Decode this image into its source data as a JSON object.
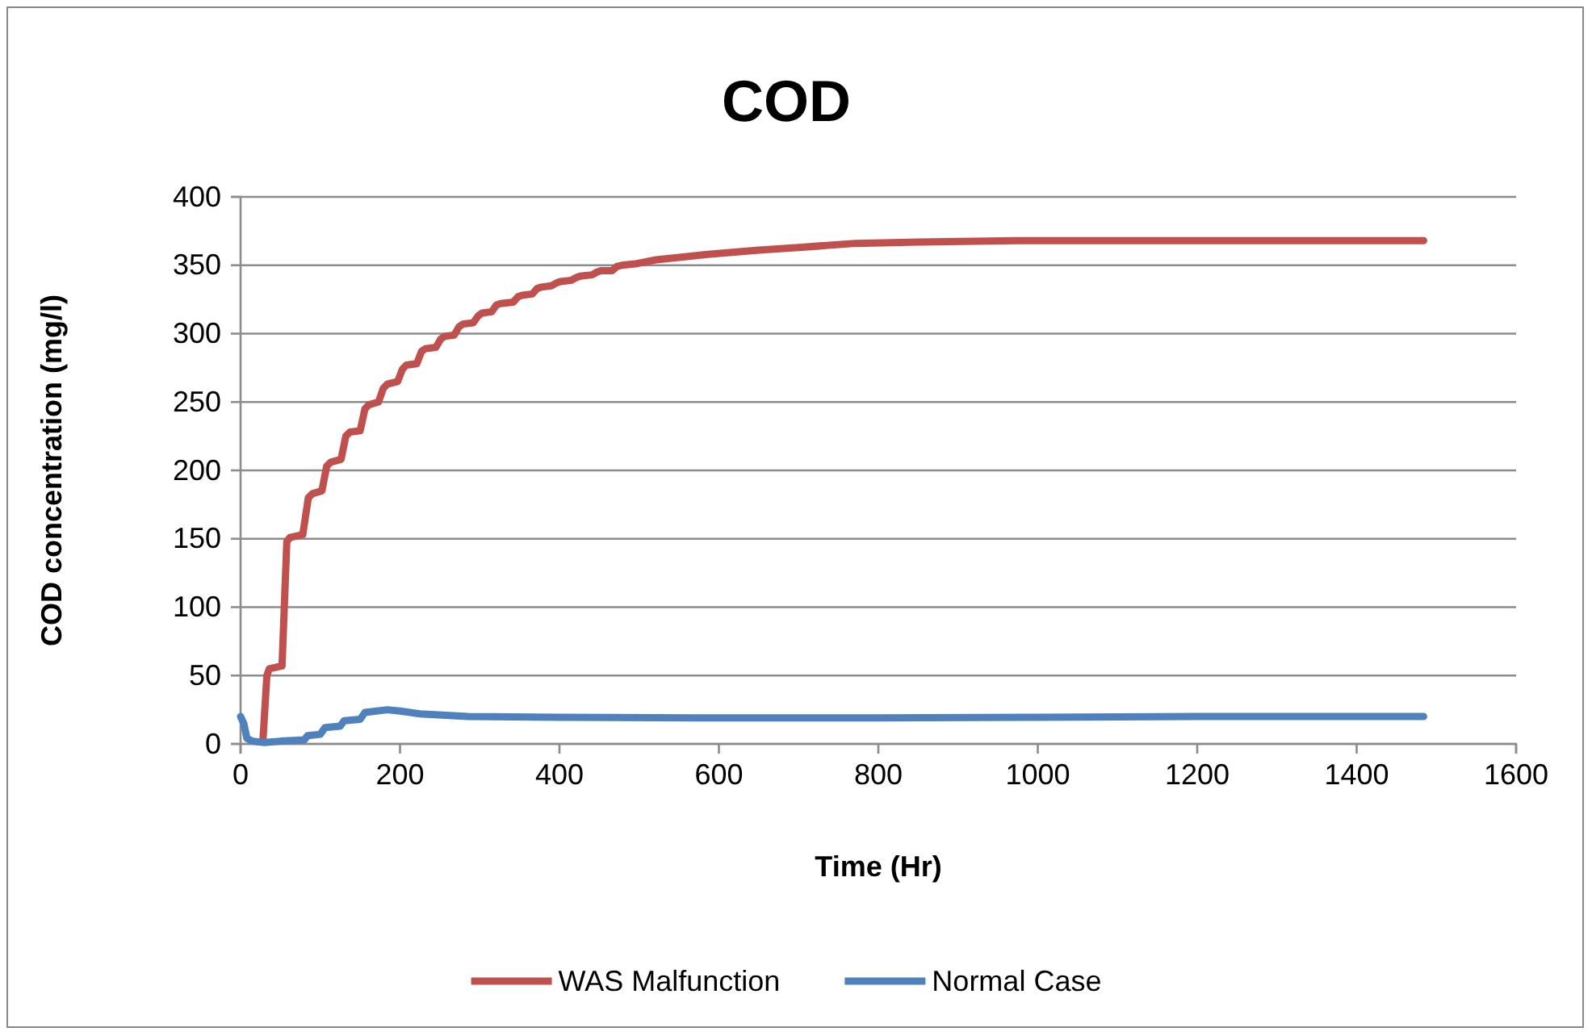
{
  "chart_data": {
    "type": "line",
    "title": "COD",
    "xlabel": "Time (Hr)",
    "ylabel": "COD concentration (mg/l)",
    "xlim": [
      0,
      1600
    ],
    "xticks": [
      0,
      200,
      400,
      600,
      800,
      1000,
      1200,
      1400,
      1600
    ],
    "ylim": [
      0,
      400
    ],
    "yticks": [
      0,
      50,
      100,
      150,
      200,
      250,
      300,
      350,
      400
    ],
    "grid": "y",
    "legend": "bottom",
    "marker": "none",
    "line_style": "solid",
    "series": [
      {
        "name": "WAS Malfunction",
        "color": "#c0504d",
        "x": [
          28,
          33,
          36,
          52,
          58,
          62,
          78,
          85,
          90,
          102,
          108,
          113,
          126,
          132,
          137,
          150,
          156,
          161,
          173,
          179,
          184,
          197,
          203,
          208,
          221,
          227,
          232,
          245,
          251,
          256,
          268,
          274,
          279,
          292,
          298,
          303,
          315,
          321,
          326,
          342,
          348,
          353,
          366,
          372,
          377,
          390,
          396,
          401,
          415,
          421,
          426,
          441,
          447,
          452,
          466,
          472,
          478,
          495,
          521,
          555,
          586,
          650,
          700,
          771,
          850,
          974,
          1100,
          1200,
          1300,
          1400,
          1484
        ],
        "values": [
          2,
          50,
          55,
          57,
          148,
          151,
          153,
          180,
          183,
          185,
          203,
          206,
          208,
          225,
          228,
          229,
          245,
          248,
          250,
          260,
          263,
          265,
          274,
          277,
          278,
          287,
          289,
          290,
          296,
          298,
          299,
          305,
          307,
          308,
          313,
          315,
          316,
          321,
          322,
          323,
          327,
          328,
          329,
          333,
          334,
          335,
          337,
          338,
          339,
          341,
          342,
          343,
          345,
          346,
          346,
          349,
          350,
          351,
          354,
          356,
          358,
          361,
          363,
          366,
          367,
          368,
          368,
          368,
          368,
          368,
          368
        ]
      },
      {
        "name": "Normal Case",
        "color": "#4f81bd",
        "x": [
          0,
          4,
          8,
          15,
          30,
          50,
          80,
          84,
          100,
          106,
          125,
          130,
          150,
          156,
          184,
          200,
          225,
          285,
          400,
          569,
          800,
          1000,
          1200,
          1484
        ],
        "values": [
          20,
          15,
          4,
          2,
          1,
          2,
          3,
          6,
          7,
          12,
          13,
          17,
          18,
          23,
          25,
          24,
          22,
          20,
          19.5,
          19,
          19,
          19.5,
          20,
          20
        ]
      }
    ]
  }
}
